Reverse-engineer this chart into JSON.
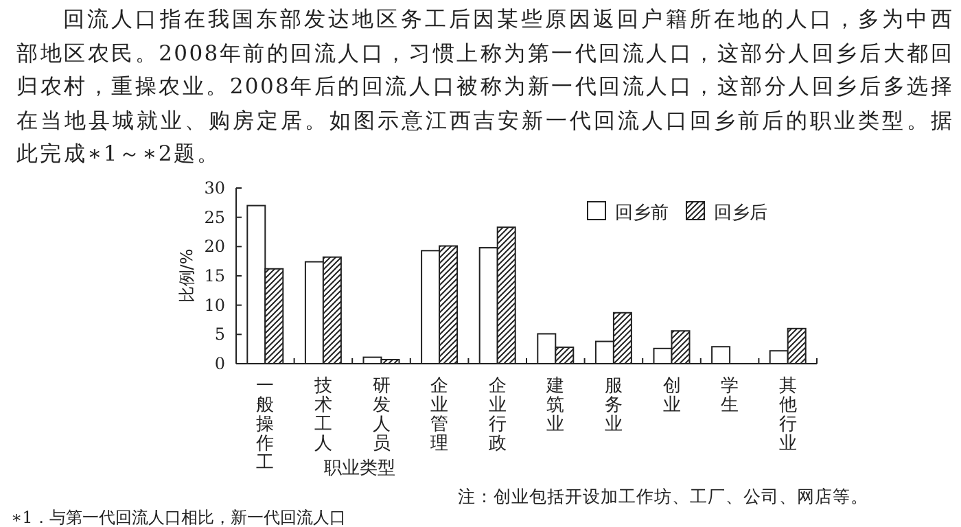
{
  "chart_data": {
    "type": "bar",
    "ylabel": "比例/%",
    "xlabel": "职业类型",
    "categories": [
      "一般操作工",
      "技术工人",
      "研发人员",
      "企业管理",
      "企业行政",
      "建筑业",
      "服务业",
      "创业",
      "学生",
      "其他行业"
    ],
    "series": [
      {
        "name": "回乡前",
        "color": "#ffffff",
        "values": [
          27.0,
          17.4,
          1.1,
          19.3,
          19.8,
          5.1,
          3.8,
          2.6,
          2.9,
          2.2
        ]
      },
      {
        "name": "回乡后",
        "color": "#222222",
        "values": [
          16.2,
          18.2,
          0.7,
          20.1,
          23.3,
          2.8,
          8.7,
          5.6,
          null,
          6.0
        ]
      }
    ],
    "ylim": [
      0,
      30
    ],
    "yticks": [
      0,
      5,
      10,
      15,
      20,
      25,
      30
    ],
    "legend": "top right",
    "grid": false,
    "annotations": [
      "回流人口指在我国东部发达地区务工后因某些原因返回户籍所在地的人口，多为中西部地区农民。2008年前的回流人口，习惯上称为第一代回流人口，这部分人回乡后大都回归农村，重操农业。2008年后的回流人口被称为新一代回流人口，这部分人回乡后多选择在当地县城就业、购房定居。如图示意江西吉安新一代回流人口回乡前后的职业类型。据此完成∗1～∗2题。",
      "注：创业包括开设加工作坊、工厂、公司、网店等。",
      "∗1．与第一代回流人口相比，新一代回流人口"
    ]
  }
}
